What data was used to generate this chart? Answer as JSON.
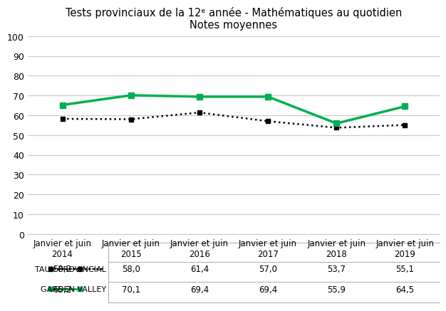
{
  "title_line1": "Tests provinciaux de la 12ᵉ année - Mathématiques au quotidien",
  "title_line2": "Notes moyennes",
  "categories": [
    "Janvier et juin\n2014",
    "Janvier et juin\n2015",
    "Janvier et juin\n2016",
    "Janvier et juin\n2017",
    "Janvier et juin\n2018",
    "Janvier et juin\n2019"
  ],
  "provincial": [
    58.2,
    58.0,
    61.4,
    57.0,
    53.7,
    55.1
  ],
  "garden_valley": [
    65.2,
    70.1,
    69.4,
    69.4,
    55.9,
    64.5
  ],
  "provincial_label": "TAUX PROVINCIAL",
  "garden_valley_label": "GARDEN VALLEY",
  "provincial_color": "#000000",
  "garden_valley_color": "#00b050",
  "ylim": [
    0,
    100
  ],
  "yticks": [
    0,
    10,
    20,
    30,
    40,
    50,
    60,
    70,
    80,
    90,
    100
  ],
  "background_color": "#ffffff",
  "grid_color": "#c8c8c8",
  "table_row1": [
    "58,2",
    "58,0",
    "61,4",
    "57,0",
    "53,7",
    "55,1"
  ],
  "table_row2": [
    "65,2",
    "70,1",
    "69,4",
    "69,4",
    "55,9",
    "64,5"
  ],
  "title_fontsize": 10.5,
  "tick_fontsize": 9,
  "legend_fontsize": 8,
  "table_fontsize": 8.5,
  "col_header_fontsize": 8.5
}
